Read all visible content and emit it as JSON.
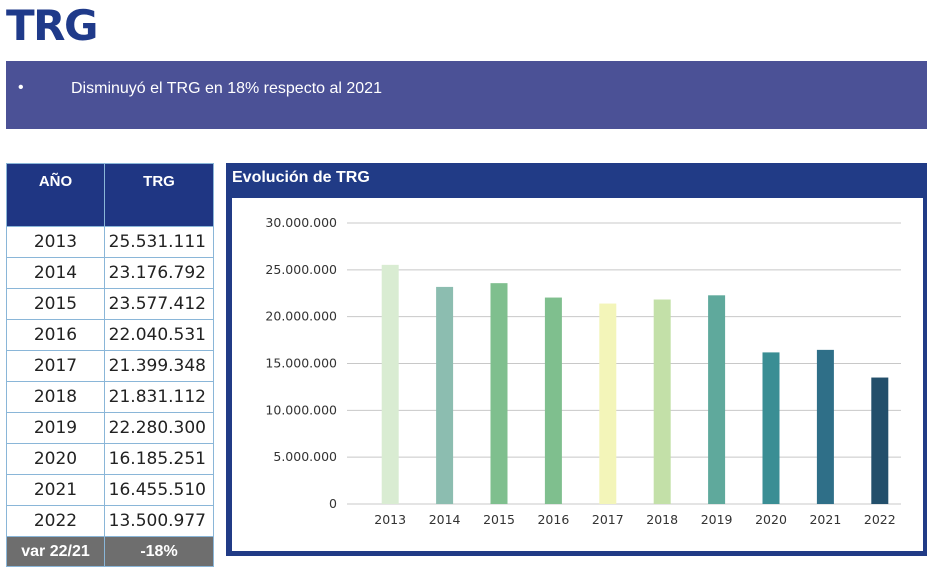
{
  "header": {
    "title": "TRG"
  },
  "banner": {
    "bullet": "•",
    "text": "Disminuyó el TRG en 18% respecto al 2021"
  },
  "table": {
    "headers": [
      "AÑO",
      "TRG"
    ],
    "rows": [
      {
        "year": "2013",
        "value": "25.531.111"
      },
      {
        "year": "2014",
        "value": "23.176.792"
      },
      {
        "year": "2015",
        "value": "23.577.412"
      },
      {
        "year": "2016",
        "value": "22.040.531"
      },
      {
        "year": "2017",
        "value": "21.399.348"
      },
      {
        "year": "2018",
        "value": "21.831.112"
      },
      {
        "year": "2019",
        "value": "22.280.300"
      },
      {
        "year": "2020",
        "value": "16.185.251"
      },
      {
        "year": "2021",
        "value": "16.455.510"
      },
      {
        "year": "2022",
        "value": "13.500.977"
      }
    ],
    "footer": {
      "label": "var 22/21",
      "value": "-18%"
    }
  },
  "chart_data": {
    "type": "bar",
    "title": "Evolución de TRG",
    "categories": [
      "2013",
      "2014",
      "2015",
      "2016",
      "2017",
      "2018",
      "2019",
      "2020",
      "2021",
      "2022"
    ],
    "values": [
      25531111,
      23176792,
      23577412,
      22040531,
      21399348,
      21831112,
      22280300,
      16185251,
      16455510,
      13500977
    ],
    "bar_colors": [
      "#d9ecd2",
      "#8cbdb0",
      "#7fbf8e",
      "#7fbf8e",
      "#f3f5b9",
      "#c3e0a8",
      "#5fa99c",
      "#3a8e94",
      "#2f6f88",
      "#234f6b"
    ],
    "ylim": [
      0,
      30000000
    ],
    "y_ticks": [
      0,
      5000000,
      10000000,
      15000000,
      20000000,
      25000000,
      30000000
    ],
    "y_tick_labels": [
      "0",
      "5.000.000",
      "10.000.000",
      "15.000.000",
      "20.000.000",
      "25.000.000",
      "30.000.000"
    ],
    "grid": true,
    "xlabel": "",
    "ylabel": ""
  }
}
